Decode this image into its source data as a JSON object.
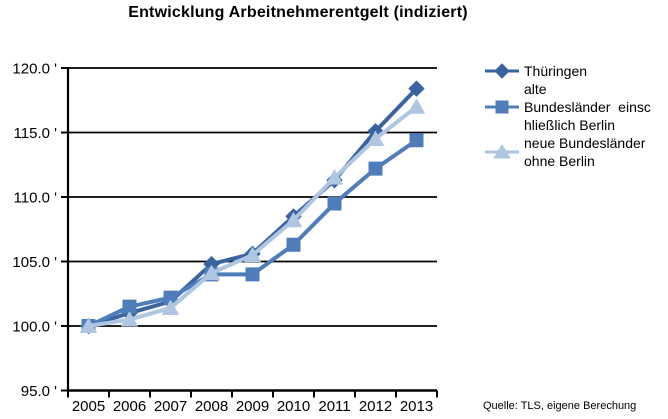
{
  "title": "Entwicklung Arbeitnehmerentgelt (indiziert)",
  "source": "Quelle: TLS, eigene Berechung",
  "colors": {
    "series_thueringen": "#3A64A0",
    "series_alte_bundeslaender": "#4E7DBA",
    "series_neue_bundeslaender": "#AFC6E2",
    "axis": "#000000",
    "background": "#FFFFFF"
  },
  "legend": {
    "entries": [
      {
        "name": "Thüringen",
        "display": "Thüringen",
        "marker": "diamond"
      },
      {
        "name": "alte Bundesländer einschließlich Berlin",
        "display": "alte\nBundesländer  einsc\nhließlich Berlin",
        "marker": "square"
      },
      {
        "name": "neue Bundesländer ohne Berlin",
        "display": "neue Bundesländer\nohne Berlin",
        "marker": "triangle"
      }
    ]
  },
  "y_axis": {
    "tick_labels": [
      "120.0 '",
      "115.0 '",
      "110.0 '",
      "105.0 '",
      "100.0 '",
      "95.0 '"
    ],
    "min": 95,
    "max": 120,
    "step": 5
  },
  "x_axis": {
    "labels": [
      "2005",
      "2006",
      "2007",
      "2008",
      "2009",
      "2010",
      "2011",
      "2012",
      "2013"
    ]
  },
  "chart_data": {
    "type": "line",
    "title": "Entwicklung Arbeitnehmerentgelt (indiziert)",
    "x": [
      2005,
      2006,
      2007,
      2008,
      2009,
      2010,
      2011,
      2012,
      2013
    ],
    "series": [
      {
        "name": "Thüringen",
        "marker": "diamond",
        "color": "#3A64A0",
        "values": [
          100.0,
          101.0,
          101.9,
          104.8,
          105.6,
          108.5,
          111.3,
          115.1,
          118.4
        ]
      },
      {
        "name": "alte Bundesländer einschließlich Berlin",
        "marker": "square",
        "color": "#4E7DBA",
        "values": [
          100.0,
          101.5,
          102.2,
          104.0,
          104.0,
          106.3,
          109.5,
          112.2,
          114.4
        ]
      },
      {
        "name": "neue Bundesländer ohne Berlin",
        "marker": "triangle",
        "color": "#AFC6E2",
        "values": [
          100.0,
          100.5,
          101.4,
          104.1,
          105.5,
          108.2,
          111.5,
          114.5,
          117.0
        ]
      }
    ],
    "ylim": [
      95,
      120
    ],
    "ytick_step": 5,
    "grid": true,
    "legend_position": "right",
    "source": "Quelle: TLS, eigene Berechung"
  }
}
